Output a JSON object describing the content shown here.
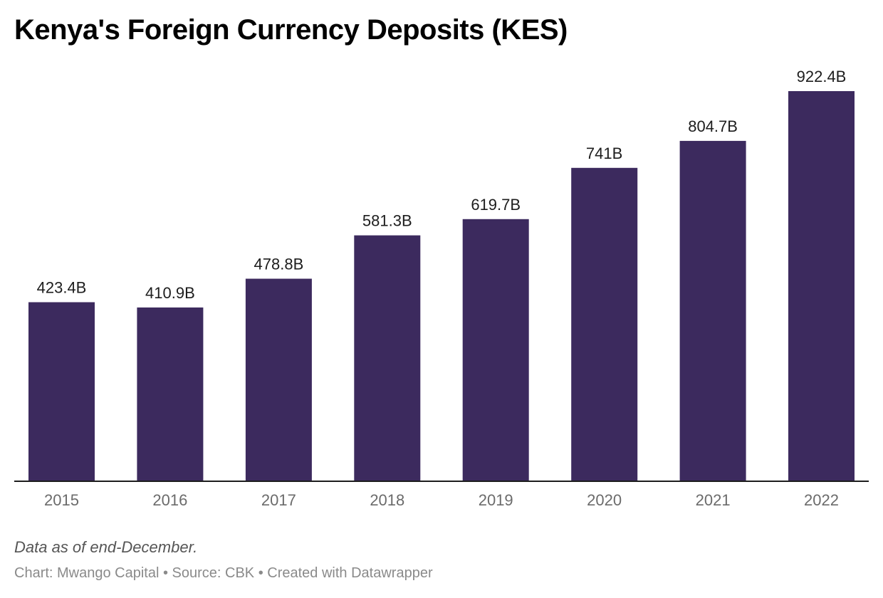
{
  "chart_data": {
    "type": "bar",
    "title": "Kenya's Foreign Currency Deposits (KES)",
    "xlabel": "",
    "ylabel": "",
    "categories": [
      "2015",
      "2016",
      "2017",
      "2018",
      "2019",
      "2020",
      "2021",
      "2022"
    ],
    "values": [
      423.4,
      410.9,
      478.8,
      581.3,
      619.7,
      741,
      804.7,
      922.4
    ],
    "value_labels": [
      "423.4B",
      "410.9B",
      "478.8B",
      "581.3B",
      "619.7B",
      "741B",
      "804.7B",
      "922.4B"
    ],
    "unit": "B",
    "ylim": [
      0,
      922.4
    ],
    "grid": false,
    "legend": "none",
    "bar_color": "#3c2a5e"
  },
  "note": "Data as of end-December.",
  "footer": "Chart: Mwango Capital • Source: CBK • Created with Datawrapper"
}
